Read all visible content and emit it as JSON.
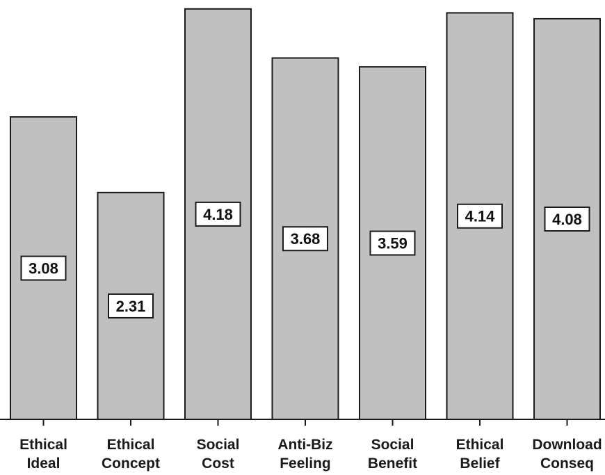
{
  "chart_data": {
    "type": "bar",
    "title": "",
    "xlabel": "",
    "ylabel": "",
    "categories": [
      [
        "Ethical",
        "Ideal"
      ],
      [
        "Ethical",
        "Concept"
      ],
      [
        "Social",
        "Cost"
      ],
      [
        "Anti-Biz",
        "Feeling"
      ],
      [
        "Social",
        "Benefit"
      ],
      [
        "Ethical",
        "Belief"
      ],
      [
        "Download",
        "Conseq"
      ]
    ],
    "values": [
      3.08,
      2.31,
      4.18,
      3.68,
      3.59,
      4.14,
      4.08
    ],
    "data_labels": [
      "3.08",
      "2.31",
      "4.18",
      "3.68",
      "3.59",
      "4.14",
      "4.08"
    ],
    "ylim": [
      0,
      4.2
    ],
    "grid": false,
    "colors": {
      "bar": "#c0c0c0",
      "outline": "#1a1a1a",
      "label_box": "#ffffff"
    }
  }
}
